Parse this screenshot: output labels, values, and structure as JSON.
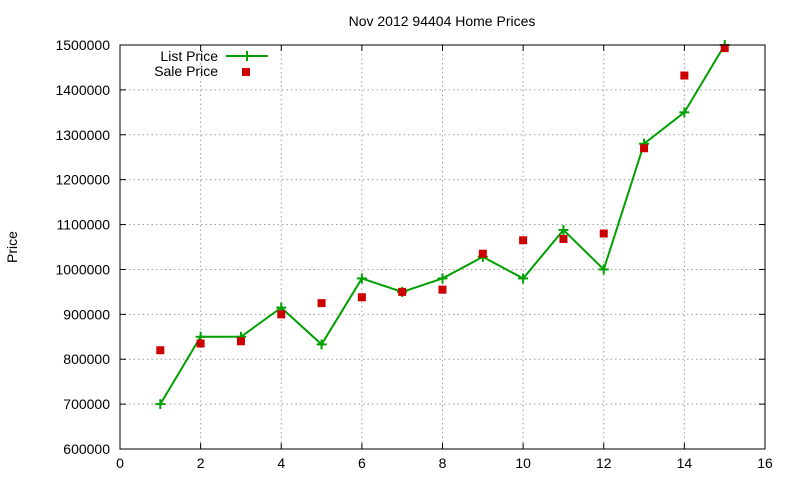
{
  "chart_data": {
    "type": "line",
    "title": "Nov 2012 94404 Home Prices",
    "xlabel": "",
    "ylabel": "Price",
    "xlim": [
      0,
      16
    ],
    "ylim": [
      600000,
      1500000
    ],
    "x_ticks": [
      "0",
      "2",
      "4",
      "6",
      "8",
      "10",
      "12",
      "14",
      "16"
    ],
    "y_ticks": [
      "600000",
      "700000",
      "800000",
      "900000",
      "1000000",
      "1100000",
      "1200000",
      "1300000",
      "1400000",
      "1500000"
    ],
    "grid": true,
    "legend_position": "top-left",
    "series": [
      {
        "name": "List Price",
        "style": "line-points",
        "marker": "plus",
        "color": "#00a000",
        "x": [
          1,
          2,
          3,
          4,
          5,
          6,
          7,
          8,
          9,
          10,
          11,
          12,
          13,
          14,
          15
        ],
        "values": [
          700000,
          850000,
          850000,
          915000,
          833000,
          980000,
          950000,
          980000,
          1028000,
          980000,
          1088000,
          1000000,
          1280000,
          1350000,
          1500000
        ]
      },
      {
        "name": "Sale Price",
        "style": "points",
        "marker": "square",
        "color": "#cc0000",
        "x": [
          1,
          2,
          3,
          4,
          5,
          6,
          7,
          8,
          9,
          10,
          11,
          12,
          13,
          14,
          15
        ],
        "values": [
          820000,
          835000,
          840000,
          900000,
          925000,
          938000,
          950000,
          955000,
          1035000,
          1065000,
          1068000,
          1080000,
          1270000,
          1432000,
          1493000
        ]
      }
    ]
  }
}
